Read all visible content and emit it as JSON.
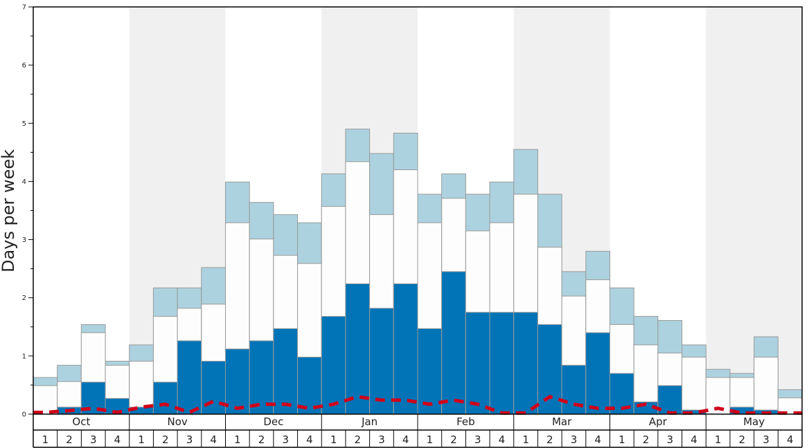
{
  "chart_data": {
    "type": "bar",
    "ylabel": "Days per week",
    "ylim": [
      0,
      7
    ],
    "yticks": [
      "0",
      "1",
      "2",
      "3",
      "4",
      "5",
      "6",
      "7"
    ],
    "months": [
      "Oct",
      "Nov",
      "Dec",
      "Jan",
      "Feb",
      "Mar",
      "Apr",
      "May"
    ],
    "week_labels": [
      "1",
      "2",
      "3",
      "4"
    ],
    "colors": {
      "dark": "#0074b7",
      "white": "#fdfdfd",
      "light": "#add2df",
      "dashed": "#d0021b",
      "band": "#f0f0f0",
      "bar_stroke": "#999999"
    },
    "series": [
      {
        "values": [
          0.0,
          0.12,
          0.55,
          0.27,
          0.12,
          0.55,
          1.26,
          0.91,
          1.12,
          1.26,
          1.47,
          0.98,
          1.68,
          2.24,
          1.82,
          2.24,
          1.47,
          2.45,
          1.75,
          1.75,
          1.75,
          1.54,
          0.84,
          1.4,
          0.7,
          0.21,
          0.49,
          0.07,
          0.0,
          0.12,
          0.07,
          0.0
        ]
      },
      {
        "values": [
          0.49,
          0.56,
          1.4,
          0.84,
          0.91,
          1.68,
          1.82,
          1.89,
          3.29,
          3.01,
          2.73,
          2.59,
          3.57,
          4.34,
          3.43,
          4.2,
          3.29,
          3.71,
          3.15,
          3.29,
          3.78,
          2.87,
          2.03,
          2.31,
          1.54,
          1.19,
          1.05,
          0.98,
          0.63,
          0.63,
          0.98,
          0.28
        ]
      },
      {
        "values": [
          0.63,
          0.84,
          1.54,
          0.91,
          1.19,
          2.17,
          2.17,
          2.52,
          3.99,
          3.64,
          3.43,
          3.29,
          4.13,
          4.9,
          4.48,
          4.83,
          3.78,
          4.13,
          3.78,
          3.99,
          4.55,
          3.78,
          2.45,
          2.8,
          2.17,
          1.68,
          1.61,
          1.19,
          0.77,
          0.7,
          1.33,
          0.42
        ]
      },
      {
        "values": [
          0.03,
          0.06,
          0.1,
          0.03,
          0.12,
          0.17,
          0.03,
          0.22,
          0.1,
          0.17,
          0.17,
          0.1,
          0.17,
          0.3,
          0.24,
          0.24,
          0.17,
          0.24,
          0.17,
          0.02,
          0.02,
          0.3,
          0.17,
          0.1,
          0.1,
          0.17,
          0.02,
          0.02,
          0.1,
          0.02,
          0.02,
          0.02
        ]
      }
    ]
  }
}
